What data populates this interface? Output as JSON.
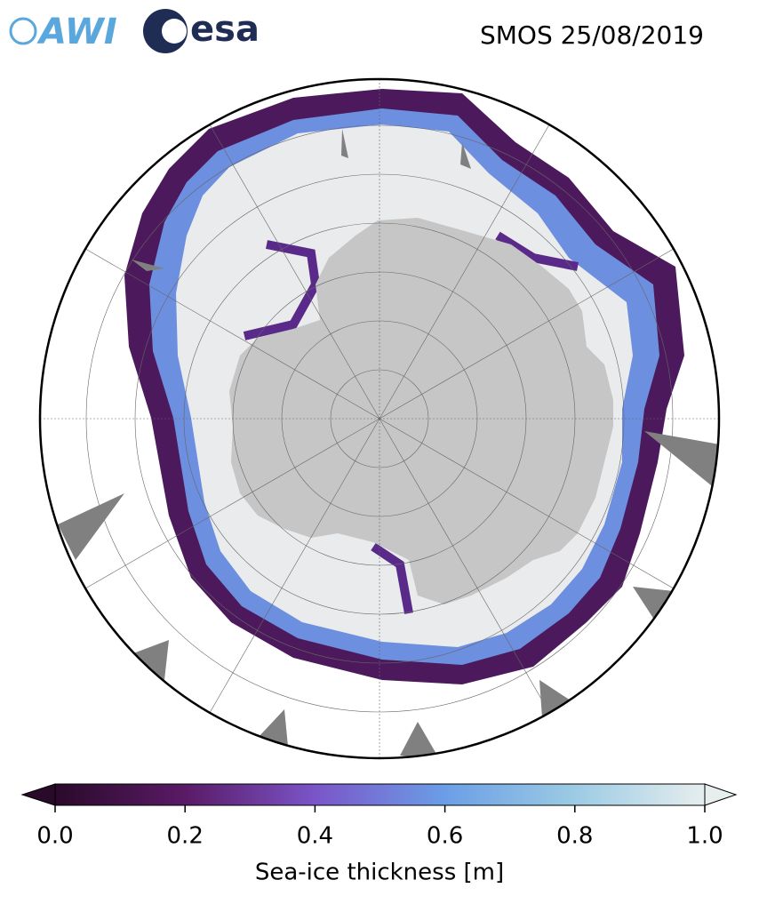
{
  "header": {
    "title": "SMOS 25/08/2019",
    "logos": [
      "AWI",
      "esa"
    ]
  },
  "colorbar": {
    "label": "Sea-ice thickness [m]",
    "lim": [
      0,
      1
    ],
    "ticks": [
      {
        "value": 0,
        "label": "0.0"
      },
      0.2,
      0.4,
      0.6,
      0.8,
      {
        "value": 1,
        "label": "1.0"
      }
    ],
    "colors": [
      "#2a0a2a",
      "#5a1a66",
      "#7a55c8",
      "#6b9ee6",
      "#9ccbe4",
      "#e6eeee"
    ]
  }
}
